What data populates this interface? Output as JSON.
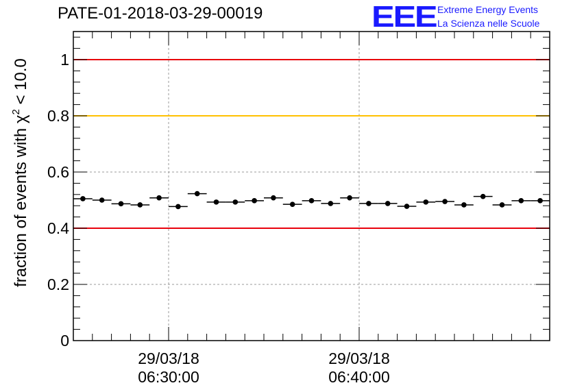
{
  "header": {
    "title": "PATE-01-2018-03-29-00019",
    "logo_mark": "EEE",
    "logo_line1": "Extreme Energy Events",
    "logo_line2": "La Scienza nelle Scuole"
  },
  "colors": {
    "logo": "#1a1aff",
    "limit_red": "#e8000b",
    "limit_yellow": "#ffc000",
    "marker": "#000000",
    "grid": "#9a9a9a"
  },
  "chart_data": {
    "type": "scatter",
    "title": "PATE-01-2018-03-29-00019",
    "xlabel": "",
    "ylabel_prefix": "fraction of events with ",
    "ylabel_symbol": "χ",
    "ylabel_exponent": "2",
    "ylabel_suffix": " < 10.0",
    "ylim": [
      0,
      1.1
    ],
    "yticks": [
      0,
      0.2,
      0.4,
      0.6,
      0.8,
      1
    ],
    "ytick_labels": [
      "0",
      "0.2",
      "0.4",
      "0.6",
      "0.8",
      "1"
    ],
    "x_unit": "minutes after 06:25:00",
    "xlim": [
      0,
      25
    ],
    "xticks_major": [
      {
        "x": 5,
        "date": "29/03/18",
        "time": "06:30:00"
      },
      {
        "x": 15,
        "date": "29/03/18",
        "time": "06:40:00"
      }
    ],
    "xticks_minor_step": 1,
    "grid": true,
    "bin_width": 1,
    "series": [
      {
        "name": "fraction",
        "x": [
          0.5,
          1.5,
          2.5,
          3.5,
          4.5,
          5.5,
          6.5,
          7.5,
          8.5,
          9.5,
          10.5,
          11.5,
          12.5,
          13.5,
          14.5,
          15.5,
          16.5,
          17.5,
          18.5,
          19.5,
          20.5,
          21.5,
          22.5,
          23.5,
          24.5
        ],
        "y": [
          0.505,
          0.5,
          0.487,
          0.483,
          0.508,
          0.477,
          0.523,
          0.493,
          0.493,
          0.498,
          0.508,
          0.485,
          0.498,
          0.488,
          0.508,
          0.488,
          0.488,
          0.478,
          0.493,
          0.495,
          0.483,
          0.513,
          0.483,
          0.498,
          0.498
        ],
        "err": 0.006
      }
    ],
    "reference_lines": [
      {
        "y": 1.0,
        "color": "#e8000b"
      },
      {
        "y": 0.8,
        "color": "#ffc000"
      },
      {
        "y": 0.4,
        "color": "#e8000b"
      }
    ]
  }
}
